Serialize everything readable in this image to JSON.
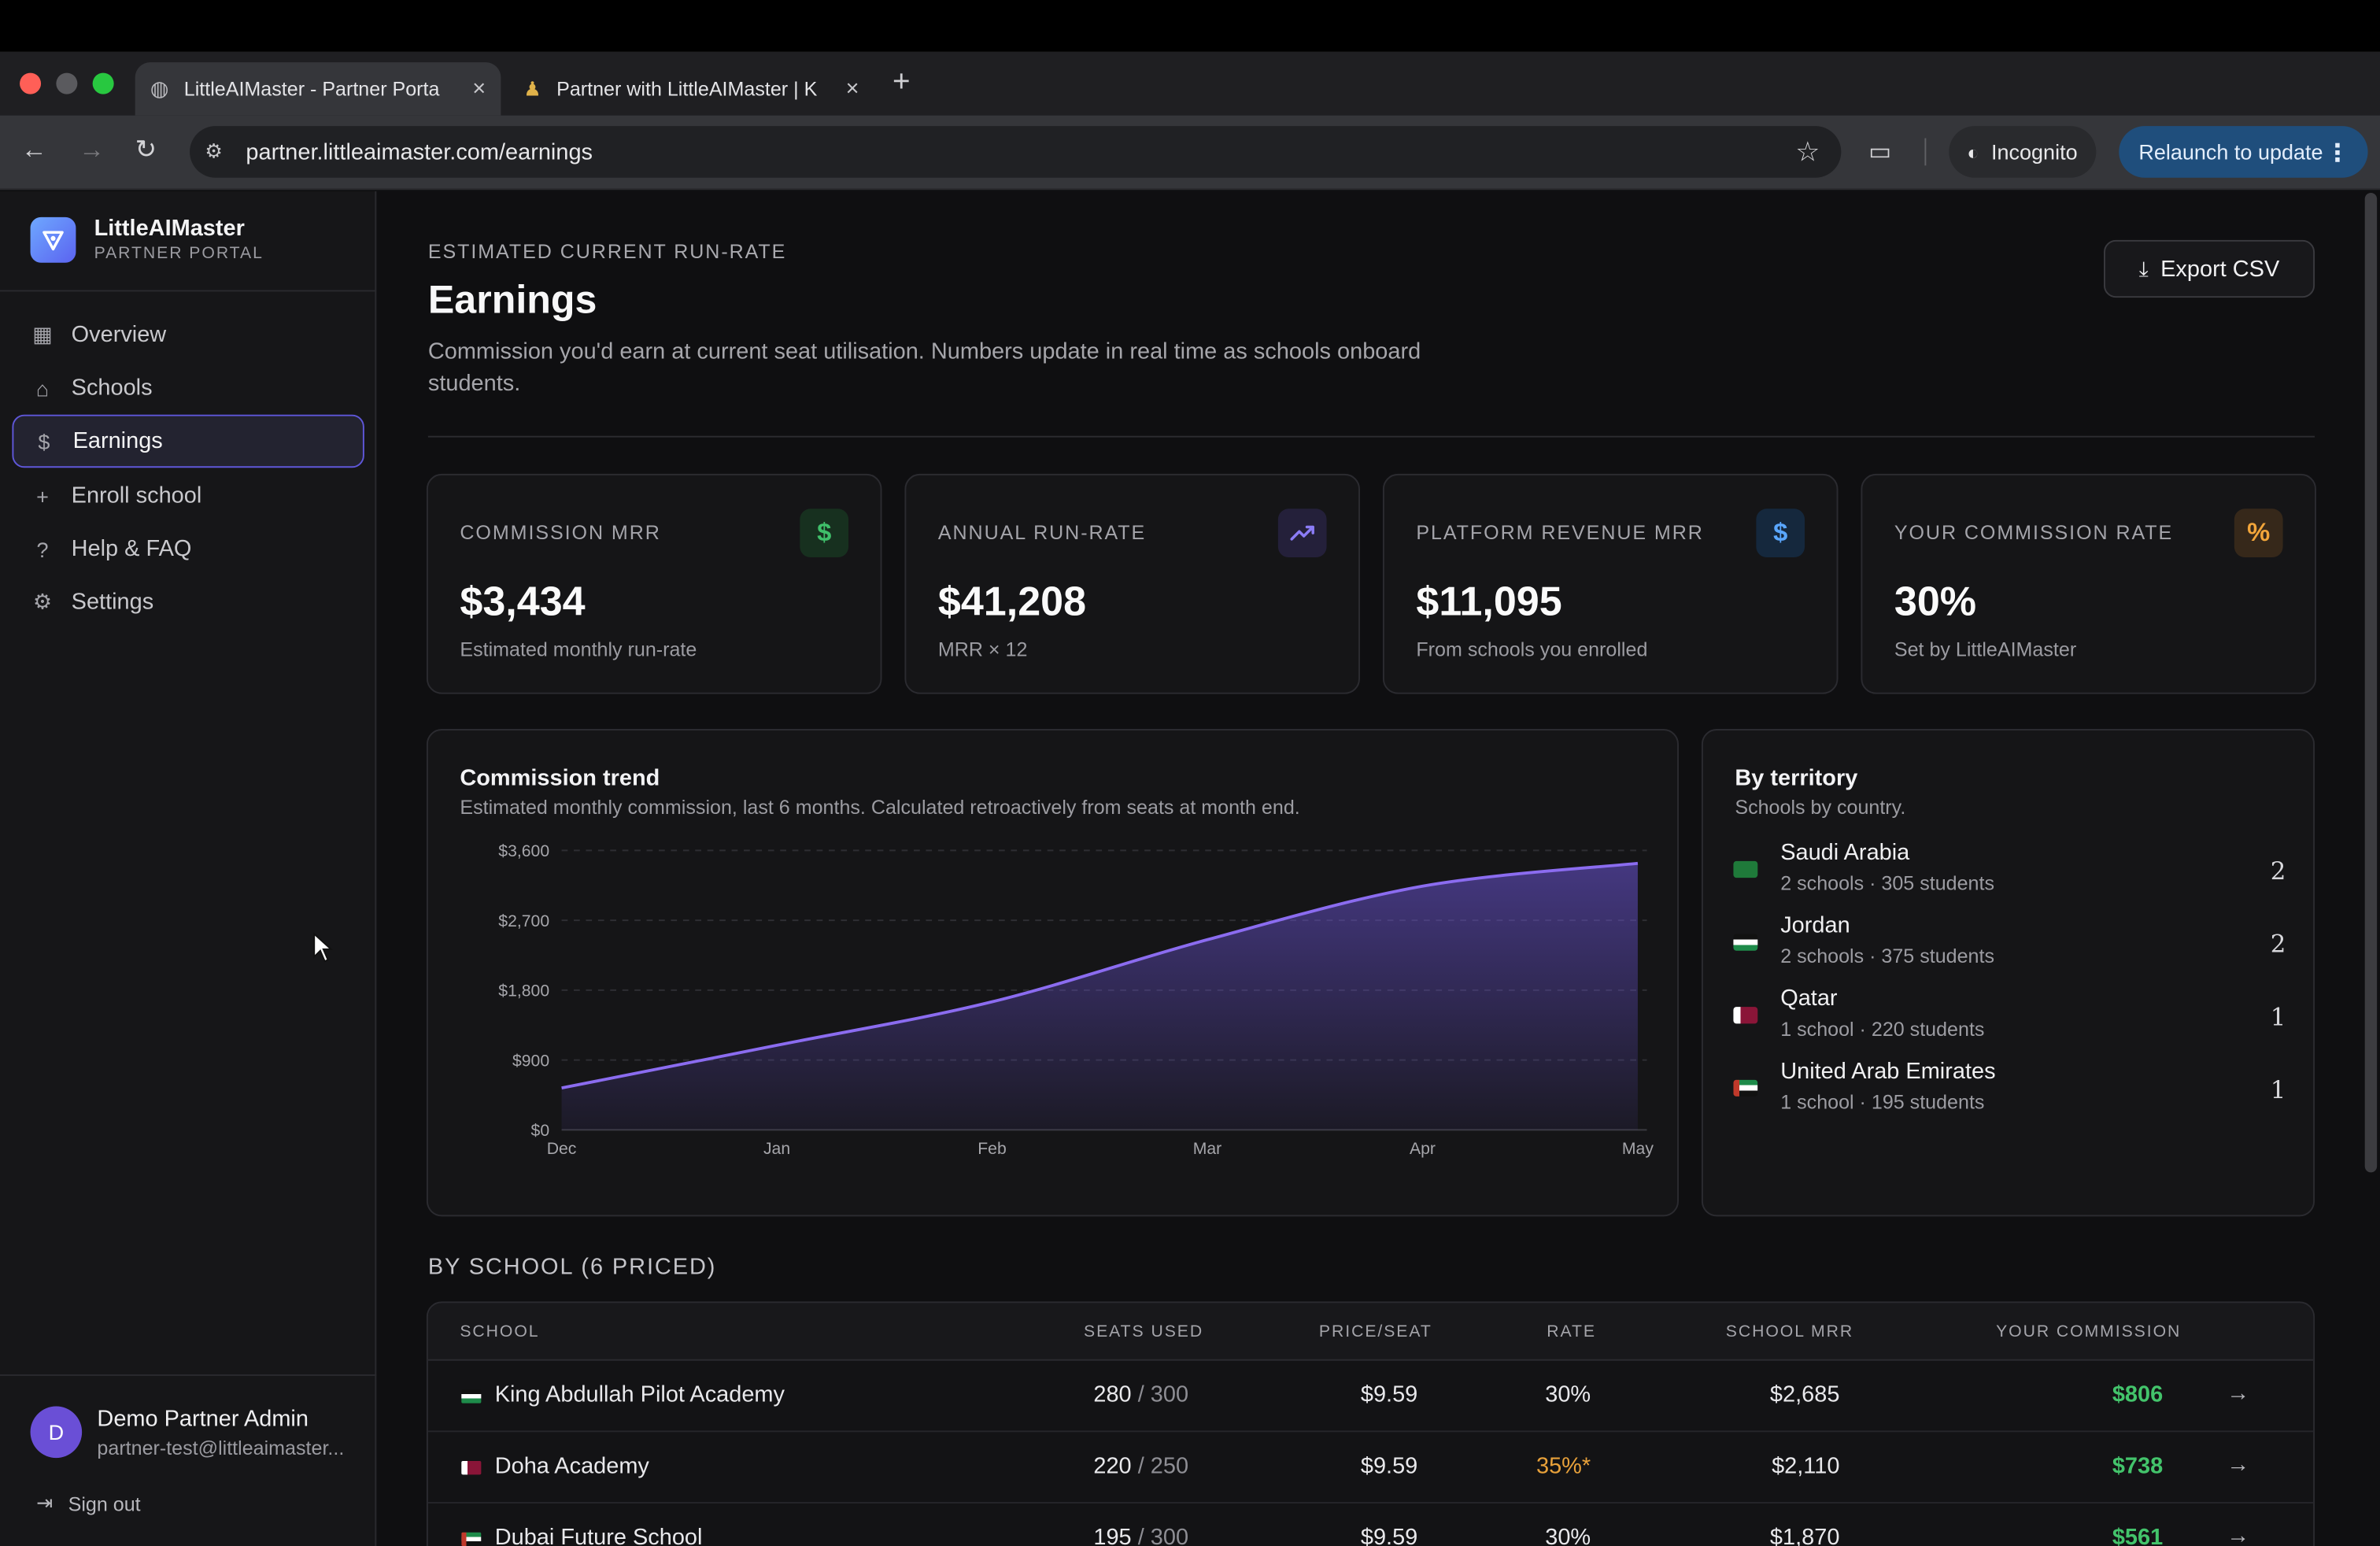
{
  "browser": {
    "tabs": [
      {
        "title": "LittleAIMaster - Partner Porta",
        "active": true
      },
      {
        "title": "Partner with LittleAIMaster | K",
        "active": false
      }
    ],
    "url": "partner.littleaimaster.com/earnings",
    "incognito_label": "Incognito",
    "relaunch_label": "Relaunch to update"
  },
  "sidebar": {
    "brand_name": "LittleAIMaster",
    "brand_sub": "PARTNER PORTAL",
    "items": [
      {
        "label": "Overview",
        "icon": "grid-icon"
      },
      {
        "label": "Schools",
        "icon": "building-icon"
      },
      {
        "label": "Earnings",
        "icon": "dollar-icon",
        "active": true
      },
      {
        "label": "Enroll school",
        "icon": "plus-icon"
      },
      {
        "label": "Help & FAQ",
        "icon": "help-icon"
      },
      {
        "label": "Settings",
        "icon": "gear-icon"
      }
    ],
    "user": {
      "initial": "D",
      "name": "Demo Partner Admin",
      "email": "partner-test@littleaimaster..."
    },
    "signout_label": "Sign out"
  },
  "header": {
    "eyebrow": "ESTIMATED CURRENT RUN-RATE",
    "title": "Earnings",
    "subtitle": "Commission you'd earn at current seat utilisation. Numbers update in real time as schools onboard students.",
    "export_label": "Export CSV"
  },
  "cards": [
    {
      "label": "COMMISSION MRR",
      "value": "$3,434",
      "note": "Estimated monthly run-rate",
      "icon": "dollar-icon",
      "accent": "#3fbf6a"
    },
    {
      "label": "ANNUAL RUN-RATE",
      "value": "$41,208",
      "note": "MRR × 12",
      "icon": "trend-up-icon",
      "accent": "#8b7cf6"
    },
    {
      "label": "PLATFORM REVENUE MRR",
      "value": "$11,095",
      "note": "From schools you enrolled",
      "icon": "dollar-icon",
      "accent": "#5aa7ff"
    },
    {
      "label": "YOUR COMMISSION RATE",
      "value": "30%",
      "note": "Set by LittleAIMaster",
      "icon": "percent-icon",
      "accent": "#f2a53a"
    }
  ],
  "trend": {
    "title": "Commission trend",
    "subtitle": "Estimated monthly commission, last 6 months. Calculated retroactively from seats at month end."
  },
  "chart_data": {
    "type": "area",
    "x": [
      "Dec",
      "Jan",
      "Feb",
      "Mar",
      "Apr",
      "May"
    ],
    "values": [
      540,
      1090,
      1650,
      2450,
      3140,
      3434
    ],
    "yticks": [
      "$0",
      "$900",
      "$1,800",
      "$2,700",
      "$3,600"
    ],
    "ylim": [
      0,
      3600
    ],
    "grid": true,
    "color": "#8b6cf0"
  },
  "territory": {
    "title": "By territory",
    "subtitle": "Schools by country.",
    "items": [
      {
        "country": "Saudi Arabia",
        "stats": "2 schools · 305 students",
        "count": "2",
        "flag": "#1f7a3a"
      },
      {
        "country": "Jordan",
        "stats": "2 schools · 375 students",
        "count": "2",
        "flag": "#c0392b"
      },
      {
        "country": "Qatar",
        "stats": "1 school · 220 students",
        "count": "1",
        "flag": "#8a1538"
      },
      {
        "country": "United Arab Emirates",
        "stats": "1 school · 195 students",
        "count": "1",
        "flag": "#1e8b4a"
      }
    ]
  },
  "schools": {
    "section_title": "BY SCHOOL (6 PRICED)",
    "columns": [
      "SCHOOL",
      "SEATS USED",
      "PRICE/SEAT",
      "RATE",
      "SCHOOL MRR",
      "YOUR COMMISSION"
    ],
    "rows": [
      {
        "name": "King Abdullah Pilot Academy",
        "used": "280",
        "total": "/ 300",
        "price": "$9.59",
        "rate": "30%",
        "rate_custom": false,
        "mrr": "$2,685",
        "commission": "$806",
        "flag": "#c0392b"
      },
      {
        "name": "Doha Academy",
        "used": "220",
        "total": "/ 250",
        "price": "$9.59",
        "rate": "35%*",
        "rate_custom": true,
        "mrr": "$2,110",
        "commission": "$738",
        "flag": "#8a1538"
      },
      {
        "name": "Dubai Future School",
        "used": "195",
        "total": "/ 300",
        "price": "$9.59",
        "rate": "30%",
        "rate_custom": false,
        "mrr": "$1,870",
        "commission": "$561",
        "flag": "#1e8b4a"
      }
    ]
  }
}
